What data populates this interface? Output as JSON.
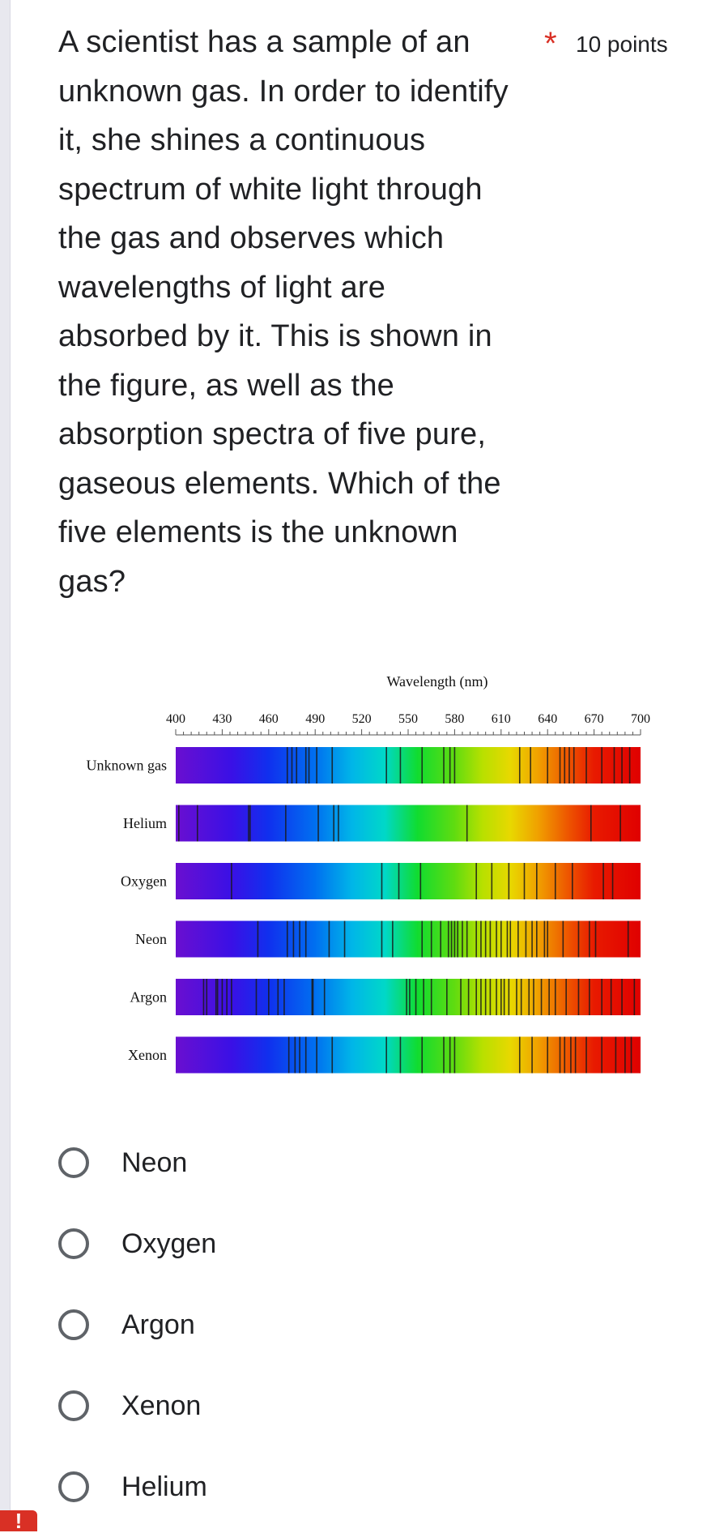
{
  "question": {
    "text": "A scientist has a sample of an unknown gas. In order to identify it, she shines a continuous spectrum of white light through the gas and observes which wavelengths of light are absorbed by it. This is shown in the figure, as well as the absorption spectra of five pure, gaseous elements. Which of the five elements is the unknown gas?",
    "lines": [
      "A scientist has a sample of an",
      "unknown gas. In order to identify",
      "it, she shines a continuous",
      "spectrum of white light through",
      "the gas and observes which",
      "wavelengths of light are",
      "absorbed by it. This is shown in",
      "the figure, as well as the",
      "absorption spectra of five pure,",
      "gaseous elements. Which of the",
      "five elements is the unknown",
      "gas?"
    ],
    "required_marker": "*",
    "points": "10 points"
  },
  "figure": {
    "title": "Wavelength (nm)",
    "tick_labels": [
      "400",
      "430",
      "460",
      "490",
      "520",
      "550",
      "580",
      "610",
      "640",
      "670",
      "700"
    ],
    "wavelength_range_nm": [
      400,
      700
    ],
    "spectra": [
      {
        "name": "Unknown gas",
        "lines_nm": [
          472,
          475,
          478,
          484,
          486,
          491,
          501,
          536,
          545,
          559,
          573,
          577,
          580,
          622,
          629,
          640,
          648,
          651,
          654,
          657,
          665,
          675,
          683,
          688,
          693
        ]
      },
      {
        "name": "Helium",
        "lines_nm": [
          402,
          414,
          447,
          448,
          471,
          492,
          502,
          505,
          588,
          668,
          687
        ]
      },
      {
        "name": "Oxygen",
        "lines_nm": [
          436,
          533,
          544,
          558,
          594,
          604,
          615,
          625,
          633,
          645,
          656,
          676,
          682
        ]
      },
      {
        "name": "Neon",
        "lines_nm": [
          453,
          472,
          476,
          480,
          484,
          499,
          509,
          533,
          540,
          559,
          565,
          571,
          576,
          578,
          580,
          582,
          585,
          588,
          594,
          597,
          600,
          603,
          607,
          610,
          614,
          616,
          621,
          626,
          630,
          633,
          638,
          640,
          650,
          660,
          667,
          671,
          692
        ]
      },
      {
        "name": "Argon",
        "lines_nm": [
          418,
          420,
          426,
          427,
          430,
          433,
          436,
          452,
          460,
          466,
          470,
          488,
          488.6,
          496,
          549,
          551,
          555,
          560,
          565,
          575,
          584,
          589,
          594,
          597,
          600,
          603,
          607,
          610,
          612,
          615,
          620,
          623,
          628,
          631,
          636,
          641,
          645,
          652,
          660,
          667,
          675,
          681,
          688,
          696
        ]
      },
      {
        "name": "Xenon",
        "lines_nm": [
          473,
          477,
          480,
          484,
          491,
          501,
          536,
          545,
          559,
          573,
          577,
          580,
          622,
          630,
          640,
          648,
          651,
          655,
          658,
          665,
          675,
          684,
          690,
          694
        ]
      }
    ]
  },
  "options": [
    {
      "label": "Neon",
      "selected": false
    },
    {
      "label": "Oxygen",
      "selected": false
    },
    {
      "label": "Argon",
      "selected": false
    },
    {
      "label": "Xenon",
      "selected": false
    },
    {
      "label": "Helium",
      "selected": false
    }
  ],
  "error_marker": "!"
}
